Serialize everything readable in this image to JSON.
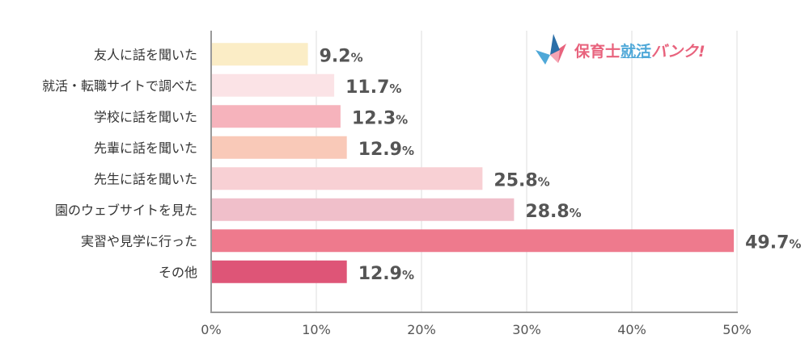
{
  "logo": {
    "part1": "保育士",
    "part2": "就活",
    "part3": "バンク!",
    "colors": {
      "pink": "#e8637d",
      "blue": "#4fa8d8",
      "navy": "#2b6fa8"
    }
  },
  "chart_data": {
    "type": "bar",
    "orientation": "horizontal",
    "title": "",
    "xlabel": "",
    "ylabel": "",
    "xlim": [
      0,
      50
    ],
    "x_ticks": [
      0,
      10,
      20,
      30,
      40,
      50
    ],
    "x_tick_labels": [
      "0%",
      "10%",
      "20%",
      "30%",
      "40%",
      "50%"
    ],
    "grid": true,
    "categories": [
      "友人に話を聞いた",
      "就活・転職サイトで調べた",
      "学校に話を聞いた",
      "先輩に話を聞いた",
      "先生に話を聞いた",
      "園のウェブサイトを見た",
      "実習や見学に行った",
      "その他"
    ],
    "values": [
      9.2,
      11.7,
      12.3,
      12.9,
      25.8,
      28.8,
      49.7,
      12.9
    ],
    "value_labels": [
      "9.2",
      "11.7",
      "12.3",
      "12.9",
      "25.8",
      "28.8",
      "49.7",
      "12.9"
    ],
    "value_suffix": "%",
    "colors": [
      "#fbedc6",
      "#fbe3e6",
      "#f6b3bc",
      "#f9c9b8",
      "#f8d0d4",
      "#f0bfca",
      "#ee7a8d",
      "#de5577"
    ]
  }
}
